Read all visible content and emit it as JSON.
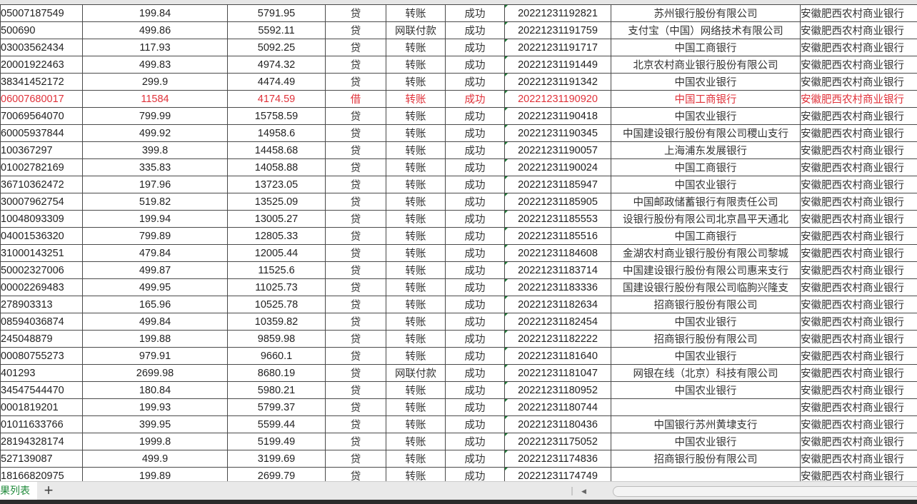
{
  "colors": {
    "highlight_row": "#e0323a",
    "sheet_tab_text": "#1f8a3a"
  },
  "rows": [
    {
      "acct": "05007187549",
      "amount": "199.84",
      "balance": "5791.95",
      "dc": "贷",
      "type": "转账",
      "status": "成功",
      "time": "20221231192821",
      "counterparty": "苏州银行股份有限公司",
      "bank": "安徽肥西农村商业银行"
    },
    {
      "acct": "500690",
      "amount": "499.86",
      "balance": "5592.11",
      "dc": "贷",
      "type": "网联付款",
      "status": "成功",
      "time": "20221231191759",
      "counterparty": "支付宝（中国）网络技术有限公司",
      "bank": "安徽肥西农村商业银行"
    },
    {
      "acct": "03003562434",
      "amount": "117.93",
      "balance": "5092.25",
      "dc": "贷",
      "type": "转账",
      "status": "成功",
      "time": "20221231191717",
      "counterparty": "中国工商银行",
      "bank": "安徽肥西农村商业银行"
    },
    {
      "acct": "20001922463",
      "amount": "499.83",
      "balance": "4974.32",
      "dc": "贷",
      "type": "转账",
      "status": "成功",
      "time": "20221231191449",
      "counterparty": "北京农村商业银行股份有限公司",
      "bank": "安徽肥西农村商业银行"
    },
    {
      "acct": "38341452172",
      "amount": "299.9",
      "balance": "4474.49",
      "dc": "贷",
      "type": "转账",
      "status": "成功",
      "time": "20221231191342",
      "counterparty": "中国农业银行",
      "bank": "安徽肥西农村商业银行"
    },
    {
      "acct": "06007680017",
      "amount": "11584",
      "balance": "4174.59",
      "dc": "借",
      "type": "转账",
      "status": "成功",
      "time": "20221231190920",
      "counterparty": "中国工商银行",
      "bank": "安徽肥西农村商业银行",
      "highlight": true
    },
    {
      "acct": "70069564070",
      "amount": "799.99",
      "balance": "15758.59",
      "dc": "贷",
      "type": "转账",
      "status": "成功",
      "time": "20221231190418",
      "counterparty": "中国农业银行",
      "bank": "安徽肥西农村商业银行"
    },
    {
      "acct": "60005937844",
      "amount": "499.92",
      "balance": "14958.6",
      "dc": "贷",
      "type": "转账",
      "status": "成功",
      "time": "20221231190345",
      "counterparty": "中国建设银行股份有限公司稷山支行",
      "bank": "安徽肥西农村商业银行"
    },
    {
      "acct": "100367297",
      "amount": "399.8",
      "balance": "14458.68",
      "dc": "贷",
      "type": "转账",
      "status": "成功",
      "time": "20221231190057",
      "counterparty": "上海浦东发展银行",
      "bank": "安徽肥西农村商业银行"
    },
    {
      "acct": "01002782169",
      "amount": "335.83",
      "balance": "14058.88",
      "dc": "贷",
      "type": "转账",
      "status": "成功",
      "time": "20221231190024",
      "counterparty": "中国工商银行",
      "bank": "安徽肥西农村商业银行"
    },
    {
      "acct": "36710362472",
      "amount": "197.96",
      "balance": "13723.05",
      "dc": "贷",
      "type": "转账",
      "status": "成功",
      "time": "20221231185947",
      "counterparty": "中国农业银行",
      "bank": "安徽肥西农村商业银行"
    },
    {
      "acct": "30007962754",
      "amount": "519.82",
      "balance": "13525.09",
      "dc": "贷",
      "type": "转账",
      "status": "成功",
      "time": "20221231185905",
      "counterparty": "中国邮政储蓄银行有限责任公司",
      "bank": "安徽肥西农村商业银行"
    },
    {
      "acct": "10048093309",
      "amount": "199.94",
      "balance": "13005.27",
      "dc": "贷",
      "type": "转账",
      "status": "成功",
      "time": "20221231185553",
      "counterparty": "设银行股份有限公司北京昌平天通北",
      "bank": "安徽肥西农村商业银行"
    },
    {
      "acct": "04001536320",
      "amount": "799.89",
      "balance": "12805.33",
      "dc": "贷",
      "type": "转账",
      "status": "成功",
      "time": "20221231185516",
      "counterparty": "中国工商银行",
      "bank": "安徽肥西农村商业银行"
    },
    {
      "acct": "31000143251",
      "amount": "479.84",
      "balance": "12005.44",
      "dc": "贷",
      "type": "转账",
      "status": "成功",
      "time": "20221231184608",
      "counterparty": "金湖农村商业银行股份有限公司黎城",
      "bank": "安徽肥西农村商业银行"
    },
    {
      "acct": "50002327006",
      "amount": "499.87",
      "balance": "11525.6",
      "dc": "贷",
      "type": "转账",
      "status": "成功",
      "time": "20221231183714",
      "counterparty": "中国建设银行股份有限公司惠来支行",
      "bank": "安徽肥西农村商业银行"
    },
    {
      "acct": "00002269483",
      "amount": "499.95",
      "balance": "11025.73",
      "dc": "贷",
      "type": "转账",
      "status": "成功",
      "time": "20221231183336",
      "counterparty": "国建设银行股份有限公司临朐兴隆支",
      "bank": "安徽肥西农村商业银行"
    },
    {
      "acct": "278903313",
      "amount": "165.96",
      "balance": "10525.78",
      "dc": "贷",
      "type": "转账",
      "status": "成功",
      "time": "20221231182634",
      "counterparty": "招商银行股份有限公司",
      "bank": "安徽肥西农村商业银行"
    },
    {
      "acct": "08594036874",
      "amount": "499.84",
      "balance": "10359.82",
      "dc": "贷",
      "type": "转账",
      "status": "成功",
      "time": "20221231182454",
      "counterparty": "中国农业银行",
      "bank": "安徽肥西农村商业银行"
    },
    {
      "acct": "245048879",
      "amount": "199.88",
      "balance": "9859.98",
      "dc": "贷",
      "type": "转账",
      "status": "成功",
      "time": "20221231182222",
      "counterparty": "招商银行股份有限公司",
      "bank": "安徽肥西农村商业银行"
    },
    {
      "acct": "00080755273",
      "amount": "979.91",
      "balance": "9660.1",
      "dc": "贷",
      "type": "转账",
      "status": "成功",
      "time": "20221231181640",
      "counterparty": "中国农业银行",
      "bank": "安徽肥西农村商业银行"
    },
    {
      "acct": "401293",
      "amount": "2699.98",
      "balance": "8680.19",
      "dc": "贷",
      "type": "网联付款",
      "status": "成功",
      "time": "20221231181047",
      "counterparty": "网银在线（北京）科技有限公司",
      "bank": "安徽肥西农村商业银行"
    },
    {
      "acct": "34547544470",
      "amount": "180.84",
      "balance": "5980.21",
      "dc": "贷",
      "type": "转账",
      "status": "成功",
      "time": "20221231180952",
      "counterparty": "中国农业银行",
      "bank": "安徽肥西农村商业银行"
    },
    {
      "acct": "0001819201",
      "amount": "199.93",
      "balance": "5799.37",
      "dc": "贷",
      "type": "转账",
      "status": "成功",
      "time": "20221231180744",
      "counterparty": "",
      "bank": "安徽肥西农村商业银行"
    },
    {
      "acct": "01011633766",
      "amount": "399.95",
      "balance": "5599.44",
      "dc": "贷",
      "type": "转账",
      "status": "成功",
      "time": "20221231180436",
      "counterparty": "中国银行苏州黄埭支行",
      "bank": "安徽肥西农村商业银行"
    },
    {
      "acct": "28194328174",
      "amount": "1999.8",
      "balance": "5199.49",
      "dc": "贷",
      "type": "转账",
      "status": "成功",
      "time": "20221231175052",
      "counterparty": "中国农业银行",
      "bank": "安徽肥西农村商业银行"
    },
    {
      "acct": "527139087",
      "amount": "499.9",
      "balance": "3199.69",
      "dc": "贷",
      "type": "转账",
      "status": "成功",
      "time": "20221231174836",
      "counterparty": "招商银行股份有限公司",
      "bank": "安徽肥西农村商业银行"
    },
    {
      "acct": "18166820975",
      "amount": "199.89",
      "balance": "2699.79",
      "dc": "贷",
      "type": "转账",
      "status": "成功",
      "time": "20221231174749",
      "counterparty": "",
      "bank": "安徽肥西农村商业银行"
    }
  ],
  "sheet_tabs": [
    {
      "label": "果列表",
      "active": true
    }
  ],
  "add_sheet_label": "+",
  "icons": {
    "add_sheet": "plus-icon",
    "scroll_left": "triangle-left-icon"
  }
}
